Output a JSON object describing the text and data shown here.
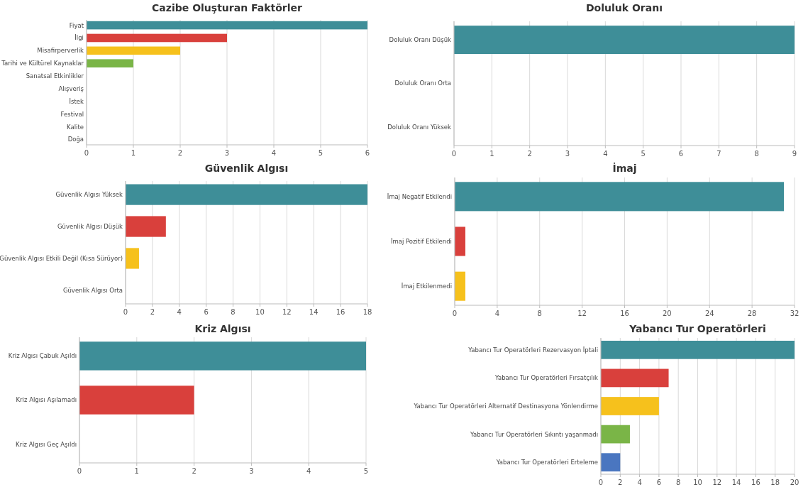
{
  "chart_data": [
    {
      "type": "bar",
      "orientation": "horizontal",
      "title": "Cazibe Oluşturan Faktörler",
      "categories": [
        "Fiyat",
        "İlgi",
        "Misafirperverlik",
        "Tarihi ve Kültürel Kaynaklar",
        "Sanatsal Etkinlikler",
        "Alışveriş",
        "İstek",
        "Festival",
        "Kalite",
        "Doğa"
      ],
      "values": [
        6,
        3,
        2,
        1,
        0,
        0,
        0,
        0,
        0,
        0
      ],
      "colors": [
        "#3e8e98",
        "#d9403c",
        "#f6c11c",
        "#7ab547",
        "#4a76c0",
        "#3e8e98",
        "#d9403c",
        "#f6c11c",
        "#7ab547",
        "#4a76c0"
      ],
      "xlim": [
        0,
        6
      ],
      "xticks": [
        0,
        1,
        2,
        3,
        4,
        5,
        6
      ],
      "grid": "x"
    },
    {
      "type": "bar",
      "orientation": "horizontal",
      "title": "Doluluk Oranı",
      "categories": [
        "Doluluk Oranı Düşük",
        "Doluluk Oranı Orta",
        "Doluluk Oranı Yüksek"
      ],
      "values": [
        9,
        0,
        0
      ],
      "colors": [
        "#3e8e98",
        "#d9403c",
        "#f6c11c"
      ],
      "xlim": [
        0,
        9
      ],
      "xticks": [
        0,
        1,
        2,
        3,
        4,
        5,
        6,
        7,
        8,
        9
      ],
      "grid": "x"
    },
    {
      "type": "bar",
      "orientation": "horizontal",
      "title": "Güvenlik Algısı",
      "categories": [
        "Güvenlik Algısı Yüksek",
        "Güvenlik Algısı Düşük",
        "Güvenlik Algısı Etkili Değil (Kısa Sürüyor)",
        "Güvenlik Algısı Orta"
      ],
      "values": [
        18,
        3,
        1,
        0
      ],
      "colors": [
        "#3e8e98",
        "#d9403c",
        "#f6c11c",
        "#7ab547"
      ],
      "xlim": [
        0,
        18
      ],
      "xticks": [
        0,
        2,
        4,
        6,
        8,
        10,
        12,
        14,
        16,
        18
      ],
      "grid": "x"
    },
    {
      "type": "bar",
      "orientation": "horizontal",
      "title": "İmaj",
      "categories": [
        "İmaj Negatif Etkilendi",
        "İmaj Pozitif Etkilendi",
        "İmaj Etkilenmedi"
      ],
      "values": [
        31,
        1,
        1
      ],
      "colors": [
        "#3e8e98",
        "#d9403c",
        "#f6c11c"
      ],
      "xlim": [
        0,
        32
      ],
      "xticks": [
        0,
        4,
        8,
        12,
        16,
        20,
        24,
        28,
        32
      ],
      "grid": "x"
    },
    {
      "type": "bar",
      "orientation": "horizontal",
      "title": "Kriz Algısı",
      "categories": [
        "Kriz Algısı Çabuk Aşıldı",
        "Kriz Algısı Aşılamadı",
        "Kriz Algısı Geç Aşıldı"
      ],
      "values": [
        5,
        2,
        0
      ],
      "colors": [
        "#3e8e98",
        "#d9403c",
        "#f6c11c"
      ],
      "xlim": [
        0,
        5
      ],
      "xticks": [
        0,
        1,
        2,
        3,
        4,
        5
      ],
      "grid": "x"
    },
    {
      "type": "bar",
      "orientation": "horizontal",
      "title": "Yabancı Tur Operatörleri",
      "categories": [
        "Yabancı Tur Operatörleri Rezervasyon İptali",
        "Yabancı Tur Operatörleri Fırsatçılık",
        "Yabancı Tur Operatörleri Alternatif Destinasyona Yönlendirme",
        "Yabancı Tur Operatörleri Sıkıntı yaşanmadı",
        "Yabancı Tur Operatörleri Erteleme"
      ],
      "values": [
        20,
        7,
        6,
        3,
        2
      ],
      "colors": [
        "#3e8e98",
        "#d9403c",
        "#f6c11c",
        "#7ab547",
        "#4a76c0"
      ],
      "xlim": [
        0,
        20
      ],
      "xticks": [
        0,
        2,
        4,
        6,
        8,
        10,
        12,
        14,
        16,
        18,
        20
      ],
      "grid": "x"
    }
  ]
}
